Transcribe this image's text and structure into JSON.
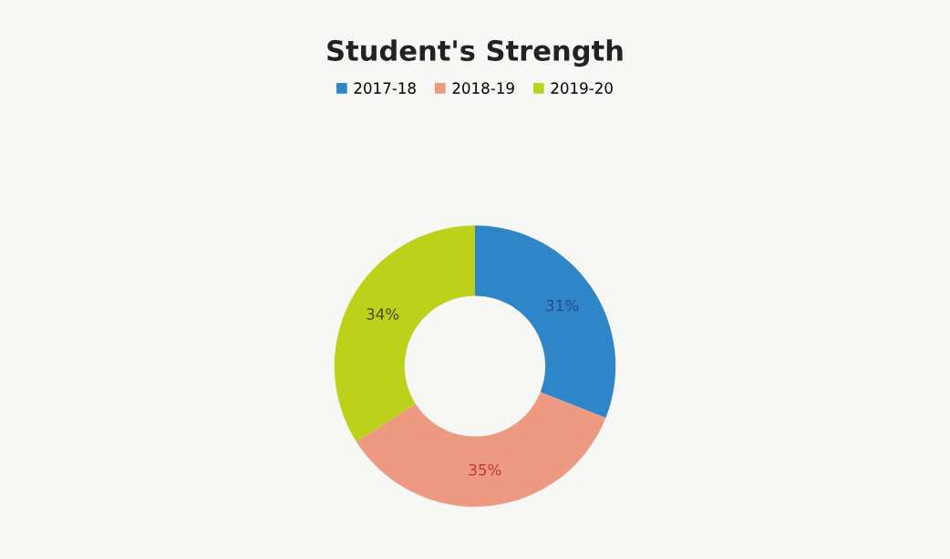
{
  "chart_data": {
    "type": "donut",
    "title": "Student's Strength",
    "categories": [
      "2017-18",
      "2018-19",
      "2019-20"
    ],
    "values": [
      31,
      35,
      34
    ],
    "colors": [
      "#2e86c8",
      "#ee9a82",
      "#bcd21a"
    ],
    "value_labels": [
      "31%",
      "35%",
      "34%"
    ],
    "legend": "top"
  }
}
